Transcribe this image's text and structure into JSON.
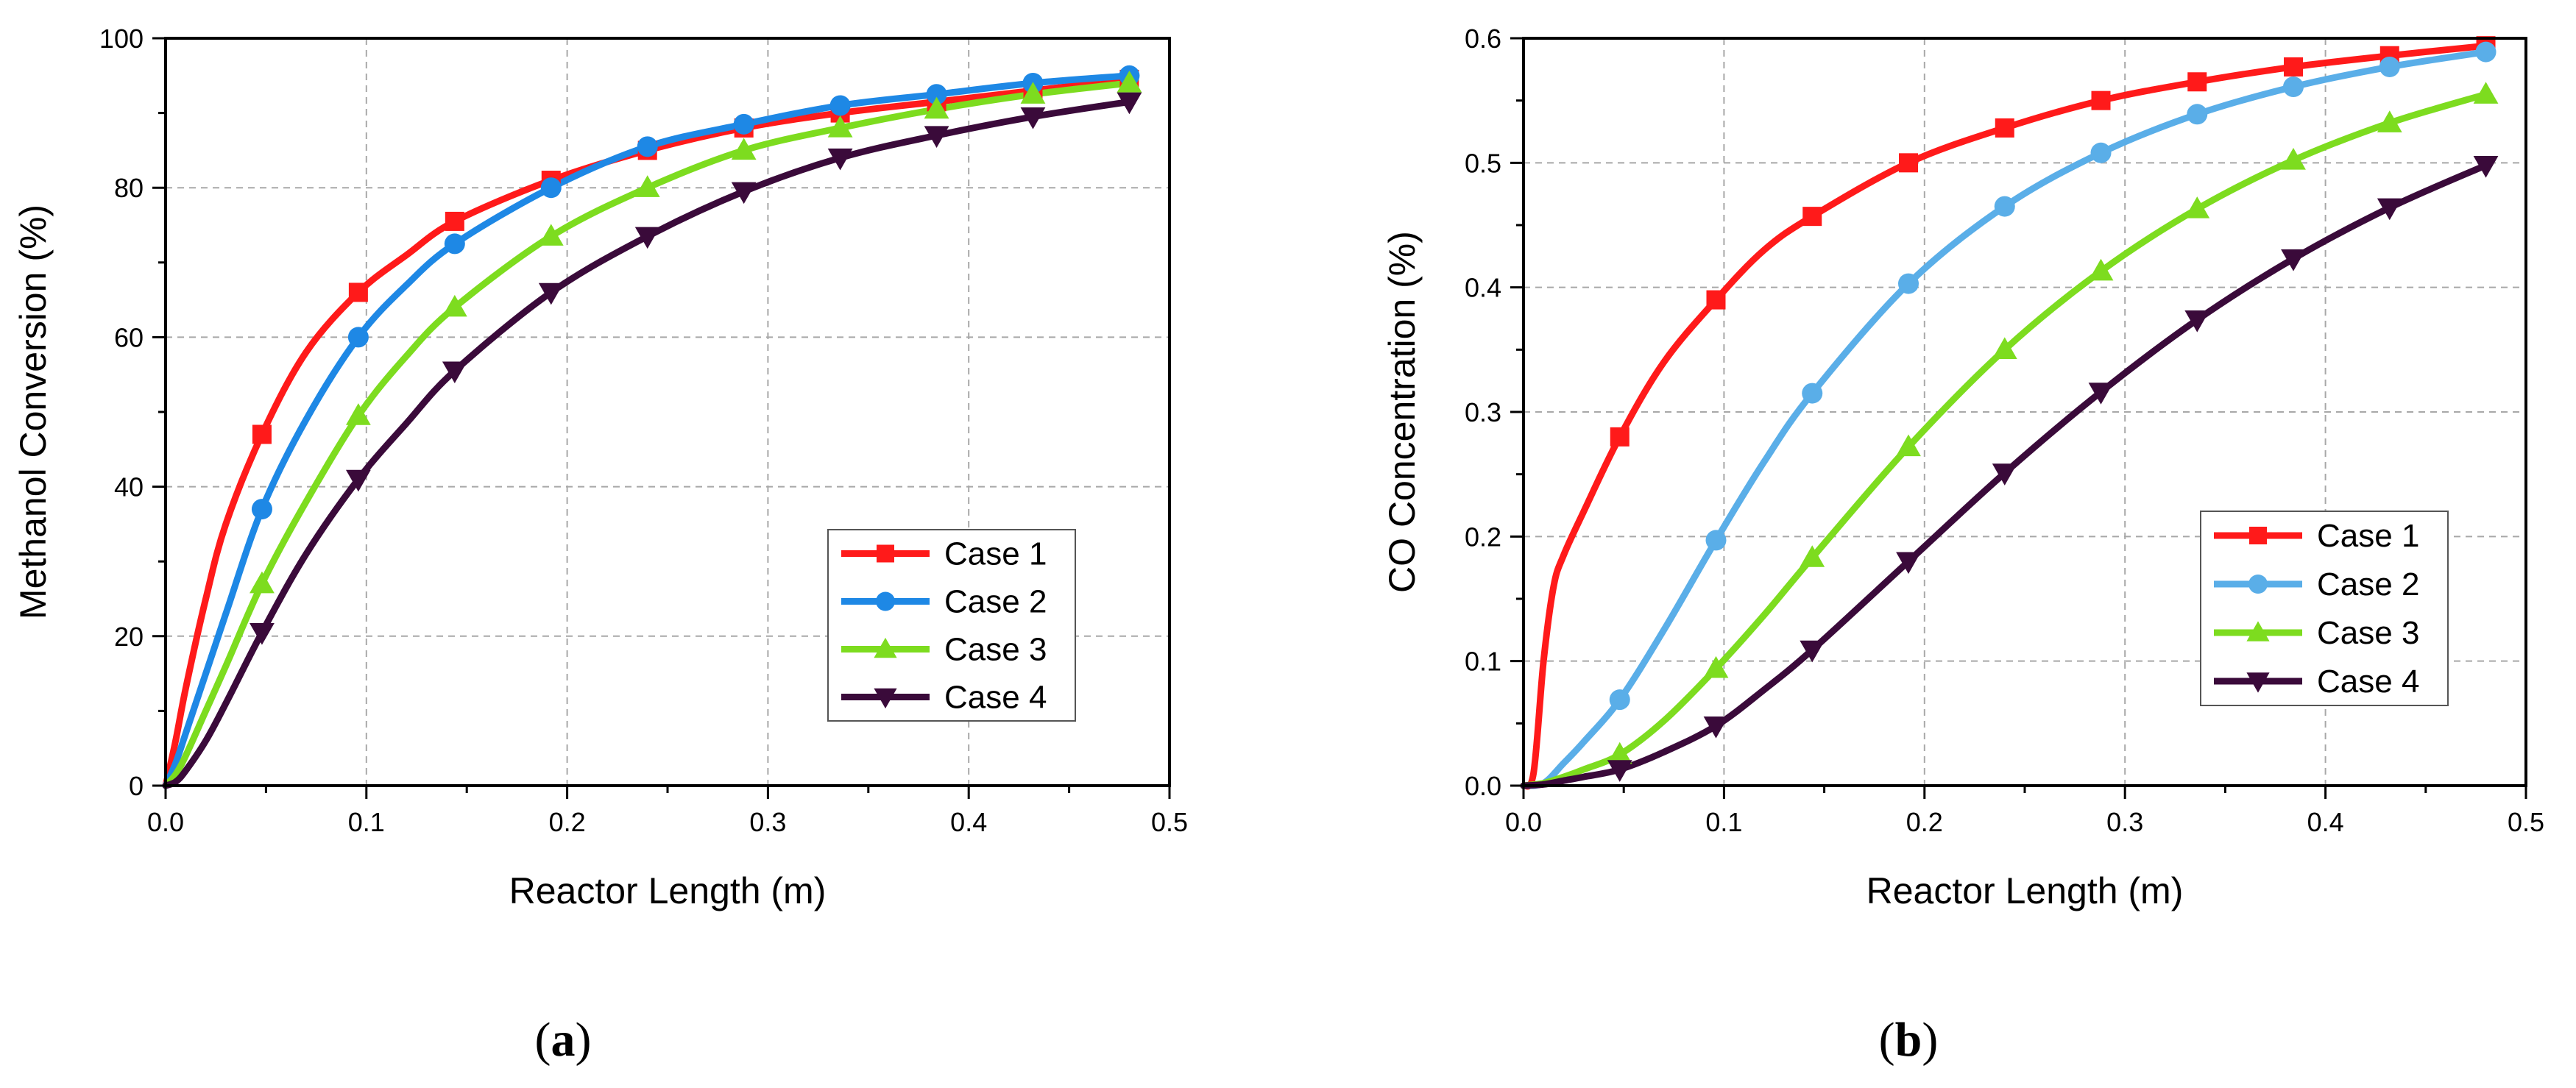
{
  "figure": {
    "panel_a_label": {
      "open": "(",
      "letter": "a",
      "close": ")"
    },
    "panel_b_label": {
      "open": "(",
      "letter": "b",
      "close": ")"
    }
  },
  "chart_data": [
    {
      "id": "a",
      "type": "line",
      "xlabel": "Reactor Length (m)",
      "ylabel": "Methanol Conversion (%)",
      "xlim": [
        0,
        0.5
      ],
      "ylim": [
        0,
        100
      ],
      "xticks": [
        0.0,
        0.1,
        0.2,
        0.3,
        0.4,
        0.5
      ],
      "xtick_labels": [
        "0.0",
        "0.1",
        "0.2",
        "0.3",
        "0.4",
        "0.5"
      ],
      "yticks": [
        0,
        20,
        40,
        60,
        80,
        100
      ],
      "ytick_labels": [
        "0",
        "20",
        "40",
        "60",
        "80",
        "100"
      ],
      "grid": true,
      "legend_position": "lower-right",
      "series": [
        {
          "name": "Case 1",
          "color": "#ff1a1a",
          "marker": "square",
          "x": [
            0,
            0.005,
            0.01,
            0.02,
            0.03,
            0.048,
            0.07,
            0.096,
            0.12,
            0.144,
            0.192,
            0.24,
            0.288,
            0.336,
            0.384,
            0.432,
            0.48
          ],
          "y": [
            0,
            6,
            13,
            25,
            35,
            47,
            58,
            66,
            71,
            75.5,
            81,
            85,
            88,
            90,
            91.5,
            93,
            94.5
          ],
          "markers_x": [
            0.048,
            0.096,
            0.144,
            0.192,
            0.24,
            0.288,
            0.336,
            0.384,
            0.432,
            0.48
          ],
          "markers_y": [
            47,
            66,
            75.5,
            81,
            85,
            88,
            90,
            91.5,
            93,
            94.5
          ]
        },
        {
          "name": "Case 2",
          "color": "#1e88e5",
          "marker": "circle",
          "x": [
            0,
            0.005,
            0.01,
            0.02,
            0.03,
            0.048,
            0.07,
            0.096,
            0.12,
            0.144,
            0.192,
            0.24,
            0.288,
            0.336,
            0.384,
            0.432,
            0.48
          ],
          "y": [
            0,
            3,
            7,
            15,
            23,
            37,
            49,
            60,
            67,
            72.5,
            80,
            85.5,
            88.5,
            91,
            92.5,
            94,
            95
          ],
          "markers_x": [
            0.048,
            0.096,
            0.144,
            0.192,
            0.24,
            0.288,
            0.336,
            0.384,
            0.432,
            0.48
          ],
          "markers_y": [
            37,
            60,
            72.5,
            80,
            85.5,
            88.5,
            91,
            92.5,
            94,
            95
          ]
        },
        {
          "name": "Case 3",
          "color": "#7ddc1f",
          "marker": "triangle-up",
          "x": [
            0,
            0.005,
            0.01,
            0.02,
            0.03,
            0.048,
            0.07,
            0.096,
            0.12,
            0.144,
            0.192,
            0.24,
            0.288,
            0.336,
            0.384,
            0.432,
            0.48
          ],
          "y": [
            0,
            1.5,
            4,
            10,
            16,
            27,
            38,
            49.5,
            57.5,
            64,
            73.5,
            80,
            85,
            88,
            90.5,
            92.5,
            94
          ],
          "markers_x": [
            0.048,
            0.096,
            0.144,
            0.192,
            0.24,
            0.288,
            0.336,
            0.384,
            0.432,
            0.48
          ],
          "markers_y": [
            27,
            49.5,
            64,
            73.5,
            80,
            85,
            88,
            90.5,
            92.5,
            94
          ]
        },
        {
          "name": "Case 4",
          "color": "#3a0a3a",
          "marker": "triangle-down",
          "x": [
            0,
            0.005,
            0.01,
            0.02,
            0.03,
            0.048,
            0.07,
            0.096,
            0.12,
            0.144,
            0.192,
            0.24,
            0.288,
            0.336,
            0.384,
            0.432,
            0.48
          ],
          "y": [
            0,
            0.5,
            2,
            6,
            11,
            20.5,
            31,
            41,
            48.5,
            55.5,
            66,
            73.5,
            79.5,
            84,
            87,
            89.5,
            91.5
          ],
          "markers_x": [
            0.048,
            0.096,
            0.144,
            0.192,
            0.24,
            0.288,
            0.336,
            0.384,
            0.432,
            0.48
          ],
          "markers_y": [
            20.5,
            41,
            55.5,
            66,
            73.5,
            79.5,
            84,
            87,
            89.5,
            91.5
          ]
        }
      ]
    },
    {
      "id": "b",
      "type": "line",
      "xlabel": "Reactor Length (m)",
      "ylabel": "CO Concentration (%)",
      "xlim": [
        0,
        0.5
      ],
      "ylim": [
        0,
        0.6
      ],
      "xticks": [
        0.0,
        0.1,
        0.2,
        0.3,
        0.4,
        0.5
      ],
      "xtick_labels": [
        "0.0",
        "0.1",
        "0.2",
        "0.3",
        "0.4",
        "0.5"
      ],
      "yticks": [
        0.0,
        0.1,
        0.2,
        0.3,
        0.4,
        0.5,
        0.6
      ],
      "ytick_labels": [
        "0.0",
        "0.1",
        "0.2",
        "0.3",
        "0.4",
        "0.5",
        "0.6"
      ],
      "grid": true,
      "legend_position": "lower-right",
      "series": [
        {
          "name": "Case 1",
          "color": "#ff1a1a",
          "marker": "square",
          "x": [
            0,
            0.005,
            0.01,
            0.015,
            0.02,
            0.03,
            0.048,
            0.07,
            0.096,
            0.12,
            0.144,
            0.192,
            0.24,
            0.288,
            0.336,
            0.384,
            0.432,
            0.48
          ],
          "y": [
            0,
            0.01,
            0.1,
            0.16,
            0.185,
            0.22,
            0.28,
            0.34,
            0.39,
            0.43,
            0.457,
            0.5,
            0.528,
            0.55,
            0.565,
            0.577,
            0.586,
            0.594
          ],
          "markers_x": [
            0.048,
            0.096,
            0.144,
            0.192,
            0.24,
            0.288,
            0.336,
            0.384,
            0.432,
            0.48
          ],
          "markers_y": [
            0.28,
            0.39,
            0.457,
            0.5,
            0.528,
            0.55,
            0.565,
            0.577,
            0.586,
            0.594
          ]
        },
        {
          "name": "Case 2",
          "color": "#5aaee8",
          "marker": "circle",
          "x": [
            0,
            0.01,
            0.02,
            0.03,
            0.048,
            0.07,
            0.096,
            0.12,
            0.144,
            0.192,
            0.24,
            0.288,
            0.336,
            0.384,
            0.432,
            0.48
          ],
          "y": [
            0,
            0.002,
            0.018,
            0.035,
            0.069,
            0.125,
            0.197,
            0.26,
            0.315,
            0.403,
            0.465,
            0.508,
            0.539,
            0.561,
            0.577,
            0.589
          ],
          "markers_x": [
            0.048,
            0.096,
            0.144,
            0.192,
            0.24,
            0.288,
            0.336,
            0.384,
            0.432,
            0.48
          ],
          "markers_y": [
            0.069,
            0.197,
            0.315,
            0.403,
            0.465,
            0.508,
            0.539,
            0.561,
            0.577,
            0.589
          ]
        },
        {
          "name": "Case 3",
          "color": "#7ddc1f",
          "marker": "triangle-up",
          "x": [
            0,
            0.01,
            0.02,
            0.03,
            0.048,
            0.07,
            0.096,
            0.12,
            0.144,
            0.192,
            0.24,
            0.288,
            0.336,
            0.384,
            0.432,
            0.48
          ],
          "y": [
            0,
            0.002,
            0.007,
            0.013,
            0.025,
            0.052,
            0.094,
            0.137,
            0.183,
            0.272,
            0.35,
            0.413,
            0.463,
            0.502,
            0.532,
            0.555
          ],
          "markers_x": [
            0.048,
            0.096,
            0.144,
            0.192,
            0.24,
            0.288,
            0.336,
            0.384,
            0.432,
            0.48
          ],
          "markers_y": [
            0.025,
            0.094,
            0.183,
            0.272,
            0.35,
            0.413,
            0.463,
            0.502,
            0.532,
            0.555
          ]
        },
        {
          "name": "Case 4",
          "color": "#3a0a3a",
          "marker": "triangle-down",
          "x": [
            0,
            0.01,
            0.02,
            0.03,
            0.048,
            0.07,
            0.096,
            0.12,
            0.144,
            0.192,
            0.24,
            0.288,
            0.336,
            0.384,
            0.432,
            0.48
          ],
          "y": [
            0,
            0.001,
            0.004,
            0.007,
            0.013,
            0.027,
            0.048,
            0.077,
            0.109,
            0.18,
            0.251,
            0.316,
            0.374,
            0.423,
            0.464,
            0.498
          ],
          "markers_x": [
            0.048,
            0.096,
            0.144,
            0.192,
            0.24,
            0.288,
            0.336,
            0.384,
            0.432,
            0.48
          ],
          "markers_y": [
            0.013,
            0.048,
            0.109,
            0.18,
            0.251,
            0.316,
            0.374,
            0.423,
            0.464,
            0.498
          ]
        }
      ]
    }
  ]
}
